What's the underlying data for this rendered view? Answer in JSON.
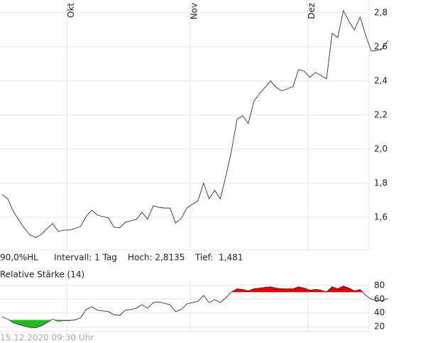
{
  "chart_data": [
    {
      "type": "line",
      "color": "#333333",
      "grid": true,
      "xlim": [
        -0.4,
        65.6
      ],
      "xticks": [
        {
          "value": 11.6,
          "label": "Okt"
        },
        {
          "value": 33.6,
          "label": "Nov"
        },
        {
          "value": 54.6,
          "label": "Dez"
        }
      ],
      "ylim": [
        1.408,
        2.875
      ],
      "yticks": [
        {
          "value": 1.6,
          "label": "1,6"
        },
        {
          "value": 1.8,
          "label": "1,8"
        },
        {
          "value": 2.0,
          "label": "2,0"
        },
        {
          "value": 2.2,
          "label": "2,2"
        },
        {
          "value": 2.4,
          "label": "2,4"
        },
        {
          "value": 2.6,
          "label": "2,6"
        },
        {
          "value": 2.8,
          "label": "2,8"
        }
      ],
      "values": [
        1.733,
        1.708,
        1.633,
        1.583,
        1.533,
        1.496,
        1.481,
        1.5,
        1.533,
        1.563,
        1.517,
        1.525,
        1.525,
        1.533,
        1.546,
        1.604,
        1.642,
        1.613,
        1.604,
        1.596,
        1.542,
        1.538,
        1.571,
        1.579,
        1.588,
        1.629,
        1.588,
        1.667,
        1.658,
        1.654,
        1.654,
        1.567,
        1.592,
        1.654,
        1.675,
        1.696,
        1.8,
        1.708,
        1.758,
        1.708,
        1.842,
        1.992,
        2.175,
        2.196,
        2.15,
        2.279,
        2.325,
        2.362,
        2.4,
        2.362,
        2.342,
        2.354,
        2.367,
        2.467,
        2.458,
        2.421,
        2.45,
        2.433,
        2.412,
        2.679,
        2.654,
        2.8135,
        2.75,
        2.7,
        2.775,
        2.667,
        2.575,
        2.579,
        2.588,
        2.638
      ]
    },
    {
      "type": "rsi",
      "title": "Relative Stärke (14)",
      "color": "#333333",
      "grid": true,
      "overbought": 70,
      "oversold": 30,
      "overbought_color": "#e00000",
      "oversold_color": "#22bb22",
      "xlim": [
        -0.4,
        65.6
      ],
      "ylim": [
        13,
        87
      ],
      "yticks": [
        20,
        40,
        60,
        80
      ],
      "values": [
        34.5,
        31,
        26,
        23,
        21,
        19,
        18.5,
        21.5,
        26,
        31,
        28,
        29,
        29,
        30,
        33,
        45,
        49,
        44,
        43,
        42,
        37.5,
        36.5,
        44,
        45,
        47,
        52,
        47,
        55,
        56,
        54,
        52,
        42,
        45,
        53,
        55,
        57,
        65.5,
        55,
        59,
        55,
        62,
        70.5,
        75,
        74,
        72,
        75,
        76,
        77,
        78,
        76,
        75,
        75,
        75,
        78,
        76,
        73,
        74,
        73,
        70.5,
        78,
        75,
        79,
        76,
        72,
        74,
        65.5,
        60,
        58,
        58,
        61
      ]
    }
  ],
  "info": [
    "90,0%HL",
    "Intervall: 1 Tag",
    "Hoch: 2,8135",
    "Tief:  1,481"
  ],
  "timestamp": "15.12.2020 09:30 Uhr"
}
